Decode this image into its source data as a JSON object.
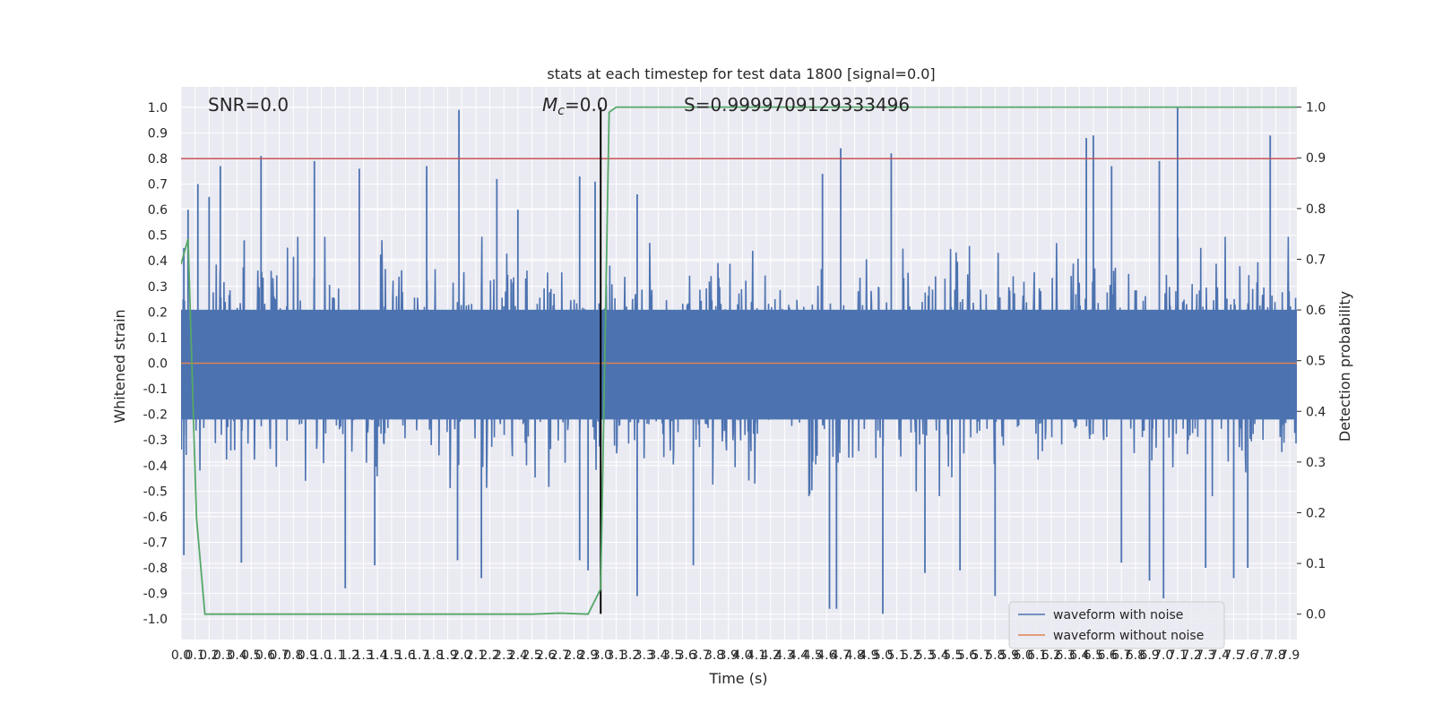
{
  "chart_data": {
    "type": "line",
    "title": "stats at each timestep for test data 1800 [signal=0.0]",
    "xlabel": "Time (s)",
    "ylabel_left": "Whitened strain",
    "ylabel_right": "Detection probability",
    "xlim": [
      0.0,
      7.95
    ],
    "ylim_left": [
      -1.08,
      1.08
    ],
    "ylim_right": [
      -0.05,
      1.04
    ],
    "x_ticks": [
      0.0,
      0.1,
      0.2,
      0.3,
      0.4,
      0.5,
      0.6,
      0.7,
      0.8,
      0.9,
      1.0,
      1.1,
      1.2,
      1.3,
      1.4,
      1.5,
      1.6,
      1.7,
      1.8,
      1.9,
      2.0,
      2.1,
      2.2,
      2.3,
      2.4,
      2.5,
      2.6,
      2.7,
      2.8,
      2.9,
      3.0,
      3.1,
      3.2,
      3.3,
      3.4,
      3.5,
      3.6,
      3.7,
      3.8,
      3.9,
      4.0,
      4.1,
      4.2,
      4.3,
      4.4,
      4.5,
      4.6,
      4.7,
      4.8,
      4.9,
      5.0,
      5.1,
      5.2,
      5.3,
      5.4,
      5.5,
      5.6,
      5.7,
      5.8,
      5.9,
      6.0,
      6.1,
      6.2,
      6.3,
      6.4,
      6.5,
      6.6,
      6.7,
      6.8,
      6.9,
      7.0,
      7.1,
      7.2,
      7.3,
      7.4,
      7.5,
      7.6,
      7.7,
      7.8,
      7.9
    ],
    "y_ticks_left": [
      -1.0,
      -0.9,
      -0.8,
      -0.7,
      -0.6,
      -0.5,
      -0.4,
      -0.3,
      -0.2,
      -0.1,
      0.0,
      0.1,
      0.2,
      0.3,
      0.4,
      0.5,
      0.6,
      0.7,
      0.8,
      0.9,
      1.0
    ],
    "y_ticks_right": [
      0.0,
      0.1,
      0.2,
      0.3,
      0.4,
      0.5,
      0.6,
      0.7,
      0.8,
      0.9,
      1.0
    ],
    "grid": true,
    "background": "#eaeaf2",
    "series": [
      {
        "name": "waveform with noise",
        "axis": "left",
        "color": "#4c72b0",
        "description_type": "noise",
        "typical_positive_extent": 0.38,
        "typical_negative_extent": -0.4,
        "spikes": [
          {
            "x": 0.02,
            "y": 0.45
          },
          {
            "x": 0.05,
            "y": 0.6
          },
          {
            "x": 0.12,
            "y": 0.7
          },
          {
            "x": 0.2,
            "y": 0.65
          },
          {
            "x": 0.28,
            "y": 0.77
          },
          {
            "x": 0.45,
            "y": 0.48
          },
          {
            "x": 0.57,
            "y": 0.81
          },
          {
            "x": 0.95,
            "y": 0.79
          },
          {
            "x": 1.27,
            "y": 0.76
          },
          {
            "x": 1.75,
            "y": 0.77
          },
          {
            "x": 1.98,
            "y": 0.99
          },
          {
            "x": 2.25,
            "y": 0.72
          },
          {
            "x": 2.4,
            "y": 0.6
          },
          {
            "x": 2.84,
            "y": 0.73
          },
          {
            "x": 2.95,
            "y": 0.71
          },
          {
            "x": 3.25,
            "y": 0.66
          },
          {
            "x": 4.57,
            "y": 0.74
          },
          {
            "x": 4.7,
            "y": 0.84
          },
          {
            "x": 5.06,
            "y": 0.82
          },
          {
            "x": 6.45,
            "y": 0.88
          },
          {
            "x": 6.5,
            "y": 0.89
          },
          {
            "x": 6.63,
            "y": 0.77
          },
          {
            "x": 6.97,
            "y": 0.79
          },
          {
            "x": 7.1,
            "y": 1.0
          },
          {
            "x": 7.76,
            "y": 0.89
          },
          {
            "x": 0.02,
            "y": -0.75
          },
          {
            "x": 0.43,
            "y": -0.78
          },
          {
            "x": 1.17,
            "y": -0.88
          },
          {
            "x": 1.38,
            "y": -0.79
          },
          {
            "x": 1.97,
            "y": -0.77
          },
          {
            "x": 2.14,
            "y": -0.84
          },
          {
            "x": 2.84,
            "y": -0.77
          },
          {
            "x": 2.9,
            "y": -0.81
          },
          {
            "x": 3.25,
            "y": -0.91
          },
          {
            "x": 3.65,
            "y": -0.79
          },
          {
            "x": 4.62,
            "y": -0.96
          },
          {
            "x": 4.67,
            "y": -0.96
          },
          {
            "x": 5.0,
            "y": -0.98
          },
          {
            "x": 5.3,
            "y": -0.82
          },
          {
            "x": 5.55,
            "y": -0.81
          },
          {
            "x": 5.8,
            "y": -0.91
          },
          {
            "x": 6.7,
            "y": -0.78
          },
          {
            "x": 6.9,
            "y": -0.85
          },
          {
            "x": 7.0,
            "y": -0.92
          },
          {
            "x": 7.3,
            "y": -0.8
          },
          {
            "x": 7.5,
            "y": -0.84
          },
          {
            "x": 7.6,
            "y": -0.8
          }
        ]
      },
      {
        "name": "waveform without noise",
        "axis": "left",
        "color": "#dd8452",
        "x": [
          0.0,
          7.95
        ],
        "y": [
          0.0,
          0.0
        ]
      },
      {
        "name": "Detection probability",
        "axis": "right",
        "color": "#55a868",
        "x": [
          0.0,
          0.05,
          0.11,
          0.17,
          0.6,
          1.0,
          1.5,
          2.0,
          2.5,
          2.7,
          2.9,
          2.99,
          3.05,
          3.1,
          4.0,
          5.0,
          6.0,
          7.0,
          7.95
        ],
        "y": [
          0.69,
          0.74,
          0.19,
          0.0,
          0.0,
          0.0,
          0.0,
          0.0,
          0.0,
          0.002,
          0.0,
          0.05,
          0.99,
          1.0,
          1.0,
          1.0,
          1.0,
          1.0,
          1.0
        ]
      }
    ],
    "reference_lines": [
      {
        "kind": "hline",
        "axis": "left",
        "y": 0.8,
        "color": "#c44e52"
      },
      {
        "kind": "vline",
        "x": 2.99,
        "y_range": [
          -0.98,
          1.0
        ],
        "color": "#000000"
      }
    ],
    "annotations": {
      "snr": "SNR=0.0",
      "mc_symbol": "M",
      "mc_subscript": "c",
      "mc_value": "=0.0",
      "s": "S=0.9999709129333496"
    },
    "legend": {
      "placement": "lower-right",
      "entries": [
        "waveform with noise",
        "waveform without noise"
      ]
    }
  }
}
